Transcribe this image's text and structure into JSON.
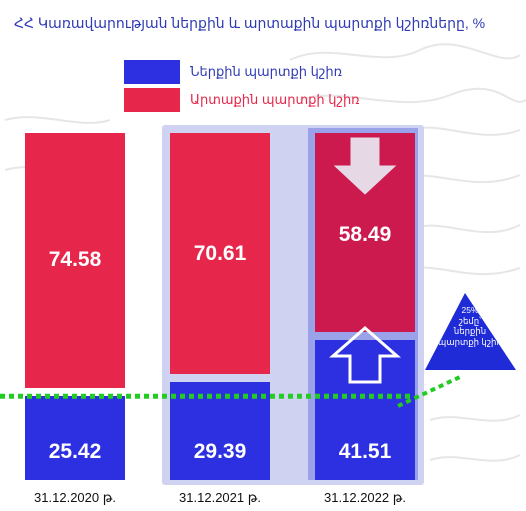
{
  "chart_data": {
    "type": "bar",
    "stacked": true,
    "title": "ՀՀ Կառավարության ներքին  և արտաքին պարտքի կշիռները, %",
    "categories": [
      "31.12.2020 թ.",
      "31.12.2021 թ.",
      "31.12.2022 թ."
    ],
    "series": [
      {
        "name": "Ներքին պարտքի կշիռ",
        "values": [
          25.42,
          29.39,
          41.51
        ],
        "color": "#2d30e0"
      },
      {
        "name": "Արտաքին պարտքի կշիռ",
        "values": [
          74.58,
          70.61,
          58.49
        ],
        "color": "#e6264a"
      }
    ],
    "ylim": [
      0,
      100
    ],
    "xlabel": "",
    "ylabel": "",
    "legend_position": "top",
    "threshold": {
      "value": 25,
      "color": "#22cc22",
      "style": "dotted"
    },
    "annotation": "25% շեմը՝ ներքին պարտքի կշիռ",
    "annotation_lines": [
      "25%",
      "շեմը՝",
      "ներքին",
      "պարտքի կշիռ"
    ],
    "last_category_arrows": {
      "external": "down",
      "internal": "up"
    },
    "colors": {
      "internal": "#2d30e0",
      "external": "#e6264a",
      "external_highlight": "#cc1a4e",
      "panel": "#cfd2f0",
      "callout": "#1e2bd6",
      "title": "#2f3bb3",
      "threshold": "#22cc22"
    }
  }
}
